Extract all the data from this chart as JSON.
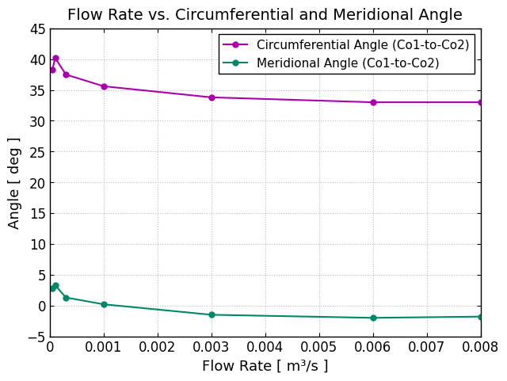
{
  "title": "Flow Rate vs. Circumferential and Meridional Angle",
  "xlabel": "Flow Rate [ m³/s ]",
  "ylabel": "Angle [ deg ]",
  "xlim": [
    0,
    0.008
  ],
  "ylim": [
    -5,
    45
  ],
  "yticks": [
    -5,
    0,
    5,
    10,
    15,
    20,
    25,
    30,
    35,
    40,
    45
  ],
  "xticks": [
    0,
    0.001,
    0.002,
    0.003,
    0.004,
    0.005,
    0.006,
    0.007,
    0.008
  ],
  "circ_x": [
    5e-05,
    0.0001,
    0.0003,
    0.001,
    0.003,
    0.006,
    0.008
  ],
  "circ_y": [
    38.3,
    40.2,
    37.5,
    35.6,
    33.8,
    33.0,
    33.0
  ],
  "merid_x": [
    5e-05,
    0.0001,
    0.0003,
    0.001,
    0.003,
    0.006,
    0.008
  ],
  "merid_y": [
    2.8,
    3.3,
    1.3,
    0.2,
    -1.5,
    -2.0,
    -1.8
  ],
  "circ_color": "#aa00aa",
  "merid_color": "#008866",
  "legend_circ": "Circumferential Angle (Co1-to-Co2)",
  "legend_merid": "Meridional Angle (Co1-to-Co2)",
  "background_color": "#ffffff",
  "grid_color": "#bbbbbb",
  "title_fontsize": 14,
  "label_fontsize": 13,
  "tick_fontsize": 12,
  "legend_fontsize": 11
}
